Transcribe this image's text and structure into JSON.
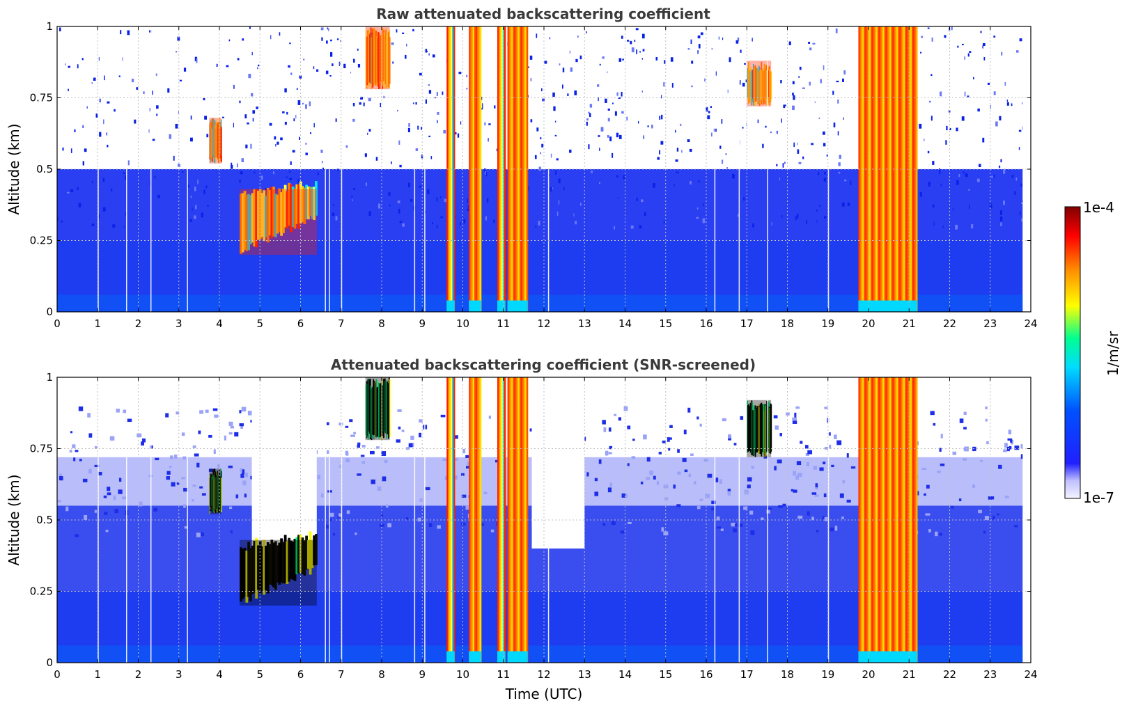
{
  "chart_data": [
    {
      "type": "heatmap",
      "title": "Raw attenuated backscattering coefficient",
      "ylabel": "Altitude (km)",
      "xlabel": "",
      "xlim": [
        0,
        24
      ],
      "ylim": [
        0,
        1
      ],
      "xticks": [
        "0",
        "1",
        "2",
        "3",
        "4",
        "5",
        "6",
        "7",
        "8",
        "9",
        "10",
        "11",
        "12",
        "13",
        "14",
        "15",
        "16",
        "17",
        "18",
        "19",
        "20",
        "21",
        "22",
        "23",
        "24"
      ],
      "yticks": [
        "0",
        "0.25",
        "0.5",
        "0.75",
        "1"
      ],
      "grid": true,
      "screened": false,
      "features": [
        {
          "kind": "background",
          "t_start": 0,
          "t_end": 23.8,
          "z_bottom": 0,
          "z_top": 1
        },
        {
          "kind": "aerosol_layer",
          "t_start": 4.5,
          "t_end": 6.4,
          "z_bottom": 0.2,
          "z_top": 0.43,
          "level": "high"
        },
        {
          "kind": "aerosol_patch",
          "t_start": 3.75,
          "t_end": 4.05,
          "z_bottom": 0.52,
          "z_top": 0.68,
          "level": "high"
        },
        {
          "kind": "cloud_column",
          "t_start": 9.6,
          "t_end": 9.8,
          "level": "high"
        },
        {
          "kind": "cloud_column",
          "t_start": 10.15,
          "t_end": 10.45,
          "level": "very-high"
        },
        {
          "kind": "cloud_column",
          "t_start": 10.85,
          "t_end": 11.05,
          "level": "high"
        },
        {
          "kind": "cloud_column",
          "t_start": 11.1,
          "t_end": 11.6,
          "level": "very-high"
        },
        {
          "kind": "cloud_column",
          "t_start": 19.75,
          "t_end": 21.2,
          "level": "very-high"
        },
        {
          "kind": "cloud_patch",
          "t_start": 7.6,
          "t_end": 8.2,
          "z_bottom": 0.78,
          "z_top": 1,
          "level": "high"
        },
        {
          "kind": "cloud_patch",
          "t_start": 17.0,
          "t_end": 17.6,
          "z_bottom": 0.72,
          "z_top": 0.88,
          "level": "high"
        }
      ]
    },
    {
      "type": "heatmap",
      "title": "Attenuated backscattering coefficient (SNR-screened)",
      "ylabel": "Altitude (km)",
      "xlabel": "Time (UTC)",
      "xlim": [
        0,
        24
      ],
      "ylim": [
        0,
        1
      ],
      "xticks": [
        "0",
        "1",
        "2",
        "3",
        "4",
        "5",
        "6",
        "7",
        "8",
        "9",
        "10",
        "11",
        "12",
        "13",
        "14",
        "15",
        "16",
        "17",
        "18",
        "19",
        "20",
        "21",
        "22",
        "23",
        "24"
      ],
      "yticks": [
        "0",
        "0.25",
        "0.5",
        "0.75",
        "1"
      ],
      "grid": true,
      "screened": true,
      "features": [
        {
          "kind": "background",
          "t_start": 0,
          "t_end": 23.8,
          "z_bottom": 0,
          "z_top": 0.75
        },
        {
          "kind": "clear_gap",
          "t_start": 4.8,
          "t_end": 6.4,
          "z_bottom": 0.4,
          "z_top": 1
        },
        {
          "kind": "clear_gap",
          "t_start": 11.7,
          "t_end": 13.0,
          "z_bottom": 0.4,
          "z_top": 1
        },
        {
          "kind": "aerosol_layer",
          "t_start": 4.5,
          "t_end": 6.4,
          "z_bottom": 0.2,
          "z_top": 0.43,
          "level": "saturated"
        },
        {
          "kind": "aerosol_patch",
          "t_start": 3.75,
          "t_end": 4.05,
          "z_bottom": 0.52,
          "z_top": 0.68,
          "level": "saturated"
        },
        {
          "kind": "cloud_column",
          "t_start": 9.6,
          "t_end": 9.8,
          "level": "high"
        },
        {
          "kind": "cloud_column",
          "t_start": 10.15,
          "t_end": 10.45,
          "level": "very-high"
        },
        {
          "kind": "cloud_column",
          "t_start": 10.85,
          "t_end": 11.05,
          "level": "high"
        },
        {
          "kind": "cloud_column",
          "t_start": 11.1,
          "t_end": 11.6,
          "level": "very-high"
        },
        {
          "kind": "cloud_column",
          "t_start": 19.75,
          "t_end": 21.2,
          "level": "very-high"
        },
        {
          "kind": "cloud_patch",
          "t_start": 7.6,
          "t_end": 8.2,
          "z_bottom": 0.78,
          "z_top": 1,
          "level": "saturated"
        },
        {
          "kind": "cloud_patch",
          "t_start": 17.0,
          "t_end": 17.6,
          "z_bottom": 0.72,
          "z_top": 0.92,
          "level": "saturated"
        }
      ]
    }
  ],
  "colorbar": {
    "label": "1/m/sr",
    "max_label": "1e-4",
    "min_label": "1e-7",
    "scale": "log",
    "colormap": [
      "#f2f2ff",
      "#c8c8ff",
      "#0000ff",
      "#0050ff",
      "#00d8ff",
      "#00ff80",
      "#ffff00",
      "#ff8000",
      "#ff0000",
      "#800000"
    ]
  }
}
